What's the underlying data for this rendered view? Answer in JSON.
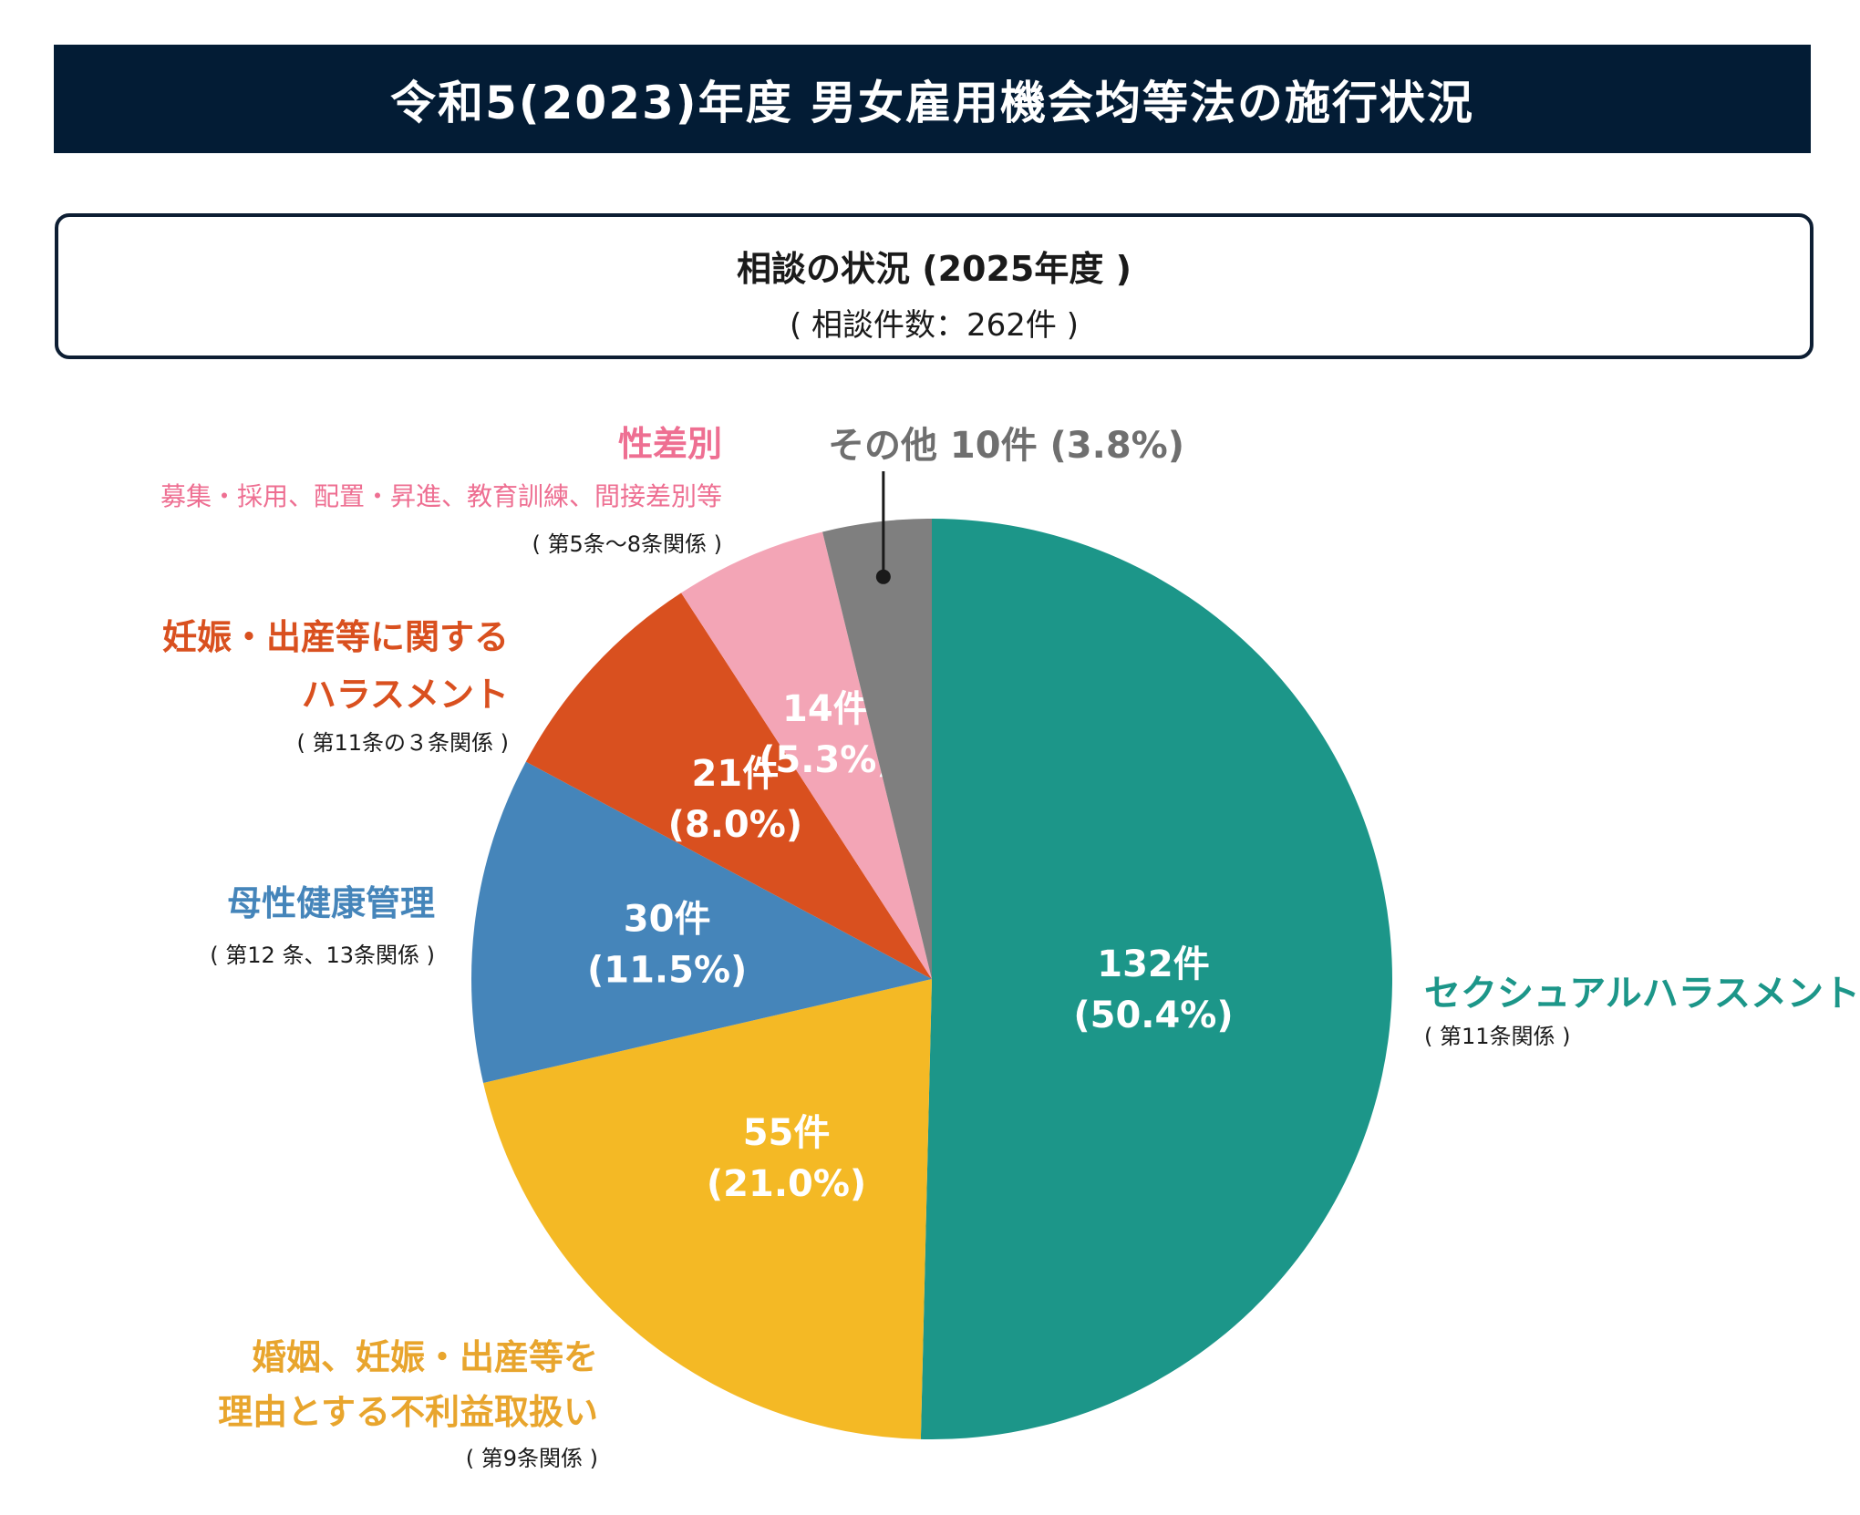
{
  "header": {
    "title": "令和5(2023)年度 男女雇用機会均等法の施行状況"
  },
  "subtitle": {
    "main": "相談の状況 (2025年度 )",
    "count": "( 相談件数：262件 )"
  },
  "colors": {
    "banner": "#031c35",
    "sexual_harassment": "#1c9689",
    "disadvantage": "#f4b925",
    "maternal_health": "#4585ba",
    "pregnancy_harassment": "#d9501f",
    "sex_discrimination": "#f3a5b6",
    "other": "#7f7f7f"
  },
  "categories": {
    "sexual_harassment": {
      "name": "セクシュアルハラスメント",
      "note": "( 第11条関係 )"
    },
    "disadvantage": {
      "name_line1": "婚姻、妊娠・出産等を",
      "name_line2": "理由とする不利益取扱い",
      "note": "( 第9条関係 )"
    },
    "maternal_health": {
      "name": "母性健康管理",
      "note": "( 第12 条、13条関係 )"
    },
    "pregnancy_harassment": {
      "name_line1": "妊娠・出産等に関する",
      "name_line2": "ハラスメント",
      "note": "( 第11条の３条関係 )"
    },
    "sex_discrimination": {
      "name": "性差別",
      "detail": "募集・採用、配置・昇進、教育訓練、間接差別等",
      "note": "( 第5条〜8条関係 )"
    },
    "other": {
      "label": "その他 10件 (3.8%)"
    }
  },
  "chart_data": {
    "type": "pie",
    "title": "相談の状況 (2025年度 )",
    "total": 262,
    "start": "12 o'clock, clockwise",
    "slices": [
      {
        "key": "sexual_harassment",
        "value": 132,
        "count_label": "132件",
        "pct_label": "(50.4%)"
      },
      {
        "key": "disadvantage",
        "value": 55,
        "count_label": "55件",
        "pct_label": "(21.0%)"
      },
      {
        "key": "maternal_health",
        "value": 30,
        "count_label": "30件",
        "pct_label": "(11.5%)"
      },
      {
        "key": "pregnancy_harassment",
        "value": 21,
        "count_label": "21件",
        "pct_label": "(8.0%)"
      },
      {
        "key": "sex_discrimination",
        "value": 14,
        "count_label": "14件",
        "pct_label": "(5.3%)"
      },
      {
        "key": "other",
        "value": 10,
        "count_label": "",
        "pct_label": ""
      }
    ]
  }
}
